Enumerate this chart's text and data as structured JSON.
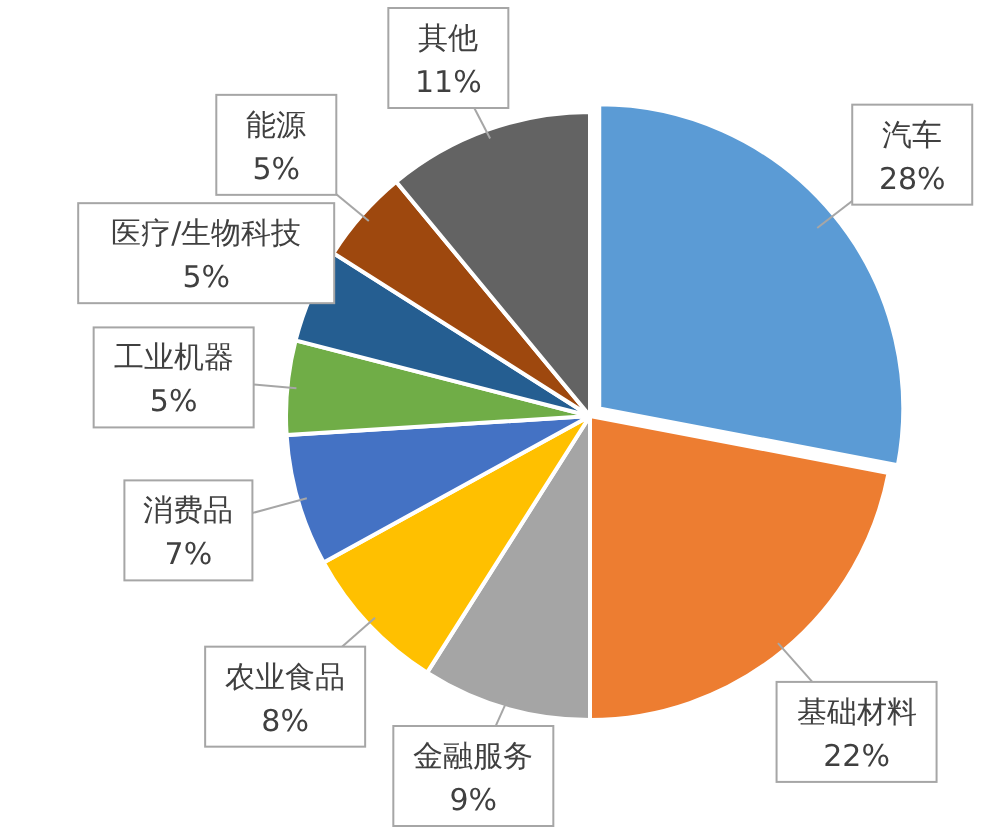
{
  "chart_data": {
    "type": "pie",
    "categories": [
      "汽车",
      "基础材料",
      "金融服务",
      "农业食品",
      "消费品",
      "工业机器",
      "医疗/生物科技",
      "能源",
      "其他"
    ],
    "values": [
      28,
      22,
      9,
      8,
      7,
      5,
      5,
      5,
      11
    ],
    "colors": [
      "#5b9bd5",
      "#ed7d31",
      "#a5a5a5",
      "#ffc000",
      "#4472c4",
      "#70ad47",
      "#255e91",
      "#9e480e",
      "#636363"
    ],
    "value_labels": [
      "28%",
      "22%",
      "9%",
      "8%",
      "7%",
      "5%",
      "5%",
      "5%",
      "11%"
    ]
  }
}
